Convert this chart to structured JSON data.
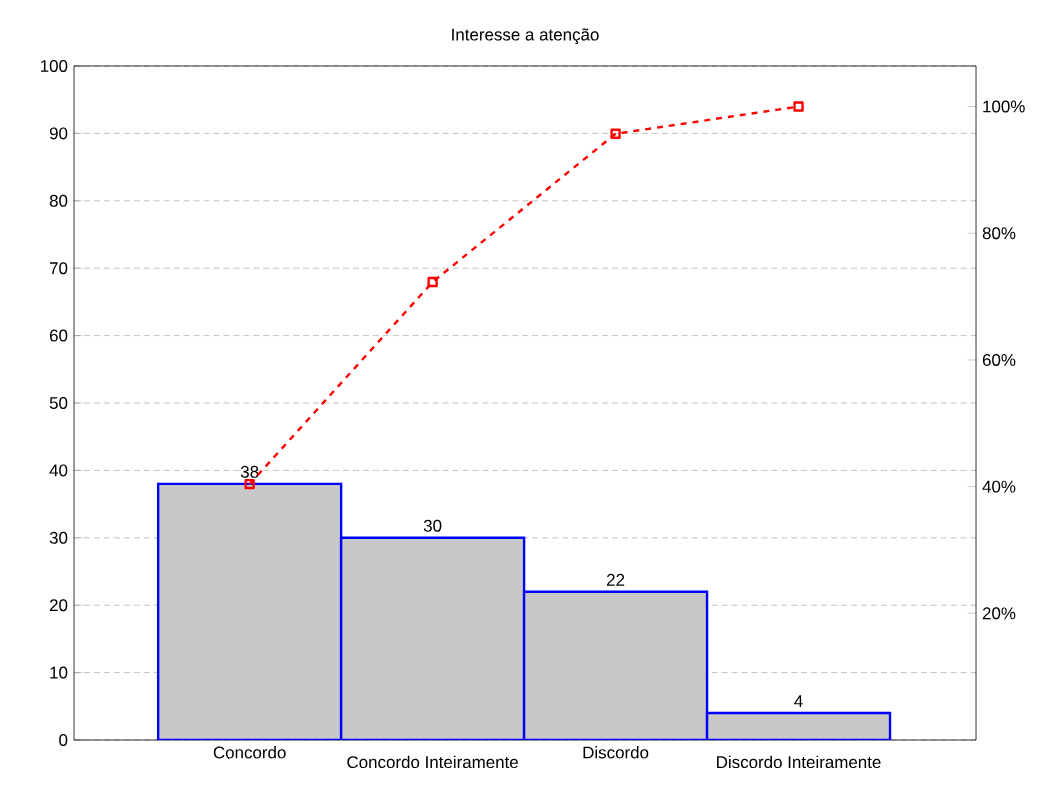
{
  "chart_data": {
    "type": "bar",
    "title": "Interesse a atenção",
    "categories": [
      "Concordo",
      "Concordo Inteiramente",
      "Discordo",
      "Discordo Inteiramente"
    ],
    "series": [
      {
        "color": "#c8c8c8",
        "values": [
          38,
          30,
          22,
          4
        ],
        "value_labels": [
          "38",
          "30",
          "22",
          "4"
        ]
      },
      {
        "type": "line",
        "axis": "y2",
        "color": "#ff0000",
        "marker": "square",
        "line_style": "dashed",
        "values": [
          40.4,
          72.3,
          95.7,
          100
        ]
      }
    ],
    "ylim": [
      0,
      100
    ],
    "yticks": [
      0,
      10,
      20,
      30,
      40,
      50,
      60,
      70,
      80,
      90,
      100
    ],
    "y2lim": [
      0,
      106.4
    ],
    "y2ticks": [
      {
        "value": 20,
        "label": "20%"
      },
      {
        "value": 40,
        "label": "40%"
      },
      {
        "value": 60,
        "label": "60%"
      },
      {
        "value": 80,
        "label": "80%"
      },
      {
        "value": 100,
        "label": "100%"
      }
    ],
    "grid": "y"
  }
}
